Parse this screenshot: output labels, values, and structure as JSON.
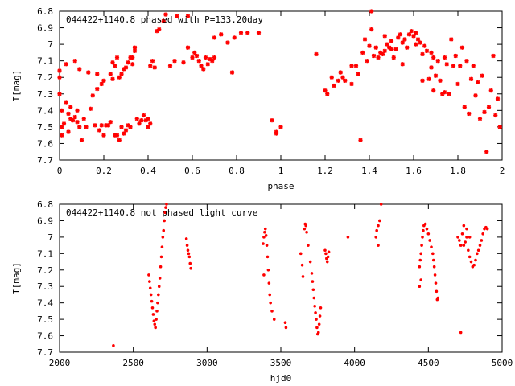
{
  "chart_data": [
    {
      "type": "scatter",
      "title": "044422+1140.8 phased with P=133.20day",
      "xlabel": "phase",
      "ylabel": "I[mag]",
      "xlim": [
        0,
        2
      ],
      "ylim": [
        6.8,
        7.7
      ],
      "y_inverted": true,
      "xticks": [
        0,
        0.2,
        0.4,
        0.6,
        0.8,
        1,
        1.2,
        1.4,
        1.6,
        1.8,
        2
      ],
      "xtick_labels": [
        "0",
        "0.2",
        "0.4",
        "0.6",
        "0.8",
        "1",
        "1.2",
        "1.4",
        "1.6",
        "1.8",
        "2"
      ],
      "yticks": [
        6.8,
        6.9,
        7.0,
        7.1,
        7.2,
        7.3,
        7.4,
        7.5,
        7.6,
        7.7
      ],
      "ytick_labels": [
        "6.8",
        "6.9",
        "7",
        "7.1",
        "7.2",
        "7.3",
        "7.4",
        "7.5",
        "7.6",
        "7.7"
      ],
      "marker_color": "#ff0000",
      "marker": "asterisk",
      "points": [
        [
          0.0,
          7.16
        ],
        [
          0.0,
          7.2
        ],
        [
          0.0,
          7.3
        ],
        [
          0.01,
          7.4
        ],
        [
          0.01,
          7.5
        ],
        [
          0.01,
          7.55
        ],
        [
          0.02,
          7.48
        ],
        [
          0.03,
          7.35
        ],
        [
          0.03,
          7.12
        ],
        [
          0.04,
          7.42
        ],
        [
          0.04,
          7.53
        ],
        [
          0.05,
          7.38
        ],
        [
          0.05,
          7.45
        ],
        [
          0.06,
          7.46
        ],
        [
          0.07,
          7.1
        ],
        [
          0.07,
          7.44
        ],
        [
          0.08,
          7.4
        ],
        [
          0.08,
          7.47
        ],
        [
          0.09,
          7.5
        ],
        [
          0.09,
          7.15
        ],
        [
          0.1,
          7.58
        ],
        [
          0.11,
          7.45
        ],
        [
          0.12,
          7.5
        ],
        [
          0.13,
          7.17
        ],
        [
          0.14,
          7.39
        ],
        [
          0.15,
          7.31
        ],
        [
          0.16,
          7.49
        ],
        [
          0.17,
          7.27
        ],
        [
          0.17,
          7.18
        ],
        [
          0.18,
          7.52
        ],
        [
          0.19,
          7.49
        ],
        [
          0.19,
          7.24
        ],
        [
          0.2,
          7.55
        ],
        [
          0.2,
          7.22
        ],
        [
          0.21,
          7.49
        ],
        [
          0.22,
          7.49
        ],
        [
          0.23,
          7.18
        ],
        [
          0.23,
          7.47
        ],
        [
          0.24,
          7.21
        ],
        [
          0.24,
          7.11
        ],
        [
          0.25,
          7.55
        ],
        [
          0.25,
          7.13
        ],
        [
          0.26,
          7.55
        ],
        [
          0.26,
          7.08
        ],
        [
          0.27,
          7.58
        ],
        [
          0.27,
          7.2
        ],
        [
          0.28,
          7.5
        ],
        [
          0.28,
          7.18
        ],
        [
          0.29,
          7.54
        ],
        [
          0.29,
          7.15
        ],
        [
          0.3,
          7.52
        ],
        [
          0.3,
          7.14
        ],
        [
          0.31,
          7.49
        ],
        [
          0.31,
          7.11
        ],
        [
          0.32,
          7.5
        ],
        [
          0.32,
          7.08
        ],
        [
          0.33,
          7.08
        ],
        [
          0.33,
          7.12
        ],
        [
          0.34,
          7.04
        ],
        [
          0.34,
          7.02
        ],
        [
          0.35,
          7.45
        ],
        [
          0.36,
          7.48
        ],
        [
          0.37,
          7.46
        ],
        [
          0.38,
          7.43
        ],
        [
          0.39,
          7.46
        ],
        [
          0.4,
          7.45
        ],
        [
          0.4,
          7.5
        ],
        [
          0.41,
          7.48
        ],
        [
          0.41,
          7.13
        ],
        [
          0.42,
          7.1
        ],
        [
          0.43,
          7.14
        ],
        [
          0.44,
          6.92
        ],
        [
          0.45,
          6.91
        ],
        [
          0.47,
          6.86
        ],
        [
          0.48,
          6.82
        ],
        [
          0.5,
          7.13
        ],
        [
          0.52,
          7.1
        ],
        [
          0.53,
          6.83
        ],
        [
          0.56,
          7.11
        ],
        [
          0.58,
          7.02
        ],
        [
          0.58,
          6.83
        ],
        [
          0.6,
          7.08
        ],
        [
          0.61,
          7.05
        ],
        [
          0.62,
          7.07
        ],
        [
          0.63,
          7.1
        ],
        [
          0.64,
          7.13
        ],
        [
          0.65,
          7.15
        ],
        [
          0.66,
          7.08
        ],
        [
          0.67,
          7.12
        ],
        [
          0.68,
          7.09
        ],
        [
          0.69,
          7.1
        ],
        [
          0.7,
          7.08
        ],
        [
          0.7,
          6.96
        ],
        [
          0.73,
          6.94
        ],
        [
          0.76,
          6.99
        ],
        [
          0.78,
          7.17
        ],
        [
          0.79,
          6.96
        ],
        [
          0.82,
          6.93
        ],
        [
          0.85,
          6.93
        ],
        [
          0.9,
          6.93
        ],
        [
          0.96,
          7.46
        ],
        [
          0.98,
          7.53
        ],
        [
          0.98,
          7.54
        ],
        [
          1.0,
          7.5
        ],
        [
          1.16,
          7.06
        ],
        [
          1.2,
          7.28
        ],
        [
          1.21,
          7.3
        ],
        [
          1.23,
          7.2
        ],
        [
          1.24,
          7.25
        ],
        [
          1.26,
          7.22
        ],
        [
          1.27,
          7.17
        ],
        [
          1.28,
          7.2
        ],
        [
          1.29,
          7.22
        ],
        [
          1.32,
          7.13
        ],
        [
          1.32,
          7.24
        ],
        [
          1.34,
          7.13
        ],
        [
          1.35,
          7.18
        ],
        [
          1.36,
          7.58
        ],
        [
          1.37,
          7.05
        ],
        [
          1.38,
          6.97
        ],
        [
          1.39,
          7.1
        ],
        [
          1.4,
          7.01
        ],
        [
          1.41,
          6.8
        ],
        [
          1.41,
          6.91
        ],
        [
          1.42,
          7.07
        ],
        [
          1.43,
          7.02
        ],
        [
          1.44,
          7.08
        ],
        [
          1.45,
          7.05
        ],
        [
          1.46,
          7.06
        ],
        [
          1.47,
          7.04
        ],
        [
          1.47,
          6.95
        ],
        [
          1.48,
          7.0
        ],
        [
          1.49,
          7.02
        ],
        [
          1.5,
          6.98
        ],
        [
          1.5,
          7.03
        ],
        [
          1.51,
          7.08
        ],
        [
          1.52,
          7.03
        ],
        [
          1.53,
          6.96
        ],
        [
          1.54,
          6.94
        ],
        [
          1.55,
          6.99
        ],
        [
          1.55,
          7.12
        ],
        [
          1.56,
          6.97
        ],
        [
          1.57,
          7.02
        ],
        [
          1.58,
          6.94
        ],
        [
          1.59,
          6.92
        ],
        [
          1.6,
          6.95
        ],
        [
          1.61,
          6.93
        ],
        [
          1.61,
          7.0
        ],
        [
          1.62,
          6.97
        ],
        [
          1.63,
          6.99
        ],
        [
          1.64,
          7.06
        ],
        [
          1.64,
          7.22
        ],
        [
          1.65,
          7.01
        ],
        [
          1.66,
          7.04
        ],
        [
          1.67,
          7.21
        ],
        [
          1.68,
          7.14
        ],
        [
          1.68,
          7.05
        ],
        [
          1.69,
          7.28
        ],
        [
          1.69,
          7.08
        ],
        [
          1.7,
          7.19
        ],
        [
          1.71,
          7.1
        ],
        [
          1.72,
          7.22
        ],
        [
          1.73,
          7.3
        ],
        [
          1.74,
          7.08
        ],
        [
          1.74,
          7.29
        ],
        [
          1.75,
          7.12
        ],
        [
          1.76,
          7.3
        ],
        [
          1.77,
          6.97
        ],
        [
          1.78,
          7.13
        ],
        [
          1.79,
          7.07
        ],
        [
          1.8,
          7.24
        ],
        [
          1.81,
          7.13
        ],
        [
          1.82,
          7.02
        ],
        [
          1.83,
          7.38
        ],
        [
          1.84,
          7.1
        ],
        [
          1.85,
          7.42
        ],
        [
          1.86,
          7.21
        ],
        [
          1.87,
          7.13
        ],
        [
          1.88,
          7.31
        ],
        [
          1.89,
          7.23
        ],
        [
          1.9,
          7.45
        ],
        [
          1.91,
          7.19
        ],
        [
          1.92,
          7.41
        ],
        [
          1.93,
          7.65
        ],
        [
          1.94,
          7.38
        ],
        [
          1.95,
          7.28
        ],
        [
          1.96,
          7.07
        ],
        [
          1.97,
          7.43
        ],
        [
          1.98,
          7.33
        ],
        [
          1.99,
          7.5
        ]
      ]
    },
    {
      "type": "scatter",
      "title": "044422+1140.8 not phased light curve",
      "xlabel": "hjd0",
      "ylabel": "I[mag]",
      "xlim": [
        2000,
        5000
      ],
      "ylim": [
        6.8,
        7.7
      ],
      "y_inverted": true,
      "xticks": [
        2000,
        2500,
        3000,
        3500,
        4000,
        4500,
        5000
      ],
      "xtick_labels": [
        "2000",
        "2500",
        "3000",
        "3500",
        "4000",
        "4500",
        "5000"
      ],
      "yticks": [
        6.8,
        6.9,
        7.0,
        7.1,
        7.2,
        7.3,
        7.4,
        7.5,
        7.6,
        7.7
      ],
      "ytick_labels": [
        "6.8",
        "6.9",
        "7",
        "7.1",
        "7.2",
        "7.3",
        "7.4",
        "7.5",
        "7.6",
        "7.7"
      ],
      "marker_color": "#ff0000",
      "marker": "dot",
      "points": [
        [
          2365,
          7.66
        ],
        [
          2605,
          7.23
        ],
        [
          2610,
          7.27
        ],
        [
          2615,
          7.31
        ],
        [
          2620,
          7.35
        ],
        [
          2625,
          7.39
        ],
        [
          2630,
          7.43
        ],
        [
          2635,
          7.47
        ],
        [
          2640,
          7.51
        ],
        [
          2645,
          7.53
        ],
        [
          2650,
          7.55
        ],
        [
          2655,
          7.5
        ],
        [
          2660,
          7.45
        ],
        [
          2665,
          7.4
        ],
        [
          2670,
          7.35
        ],
        [
          2675,
          7.3
        ],
        [
          2680,
          7.25
        ],
        [
          2685,
          7.18
        ],
        [
          2690,
          7.12
        ],
        [
          2695,
          7.06
        ],
        [
          2700,
          7.0
        ],
        [
          2705,
          6.96
        ],
        [
          2710,
          6.9
        ],
        [
          2715,
          6.85
        ],
        [
          2720,
          6.82
        ],
        [
          2725,
          6.8
        ],
        [
          2860,
          7.01
        ],
        [
          2865,
          7.05
        ],
        [
          2870,
          7.08
        ],
        [
          2875,
          7.1
        ],
        [
          2880,
          7.12
        ],
        [
          2885,
          7.16
        ],
        [
          2890,
          7.19
        ],
        [
          3380,
          7.04
        ],
        [
          3385,
          7.0
        ],
        [
          3390,
          6.97
        ],
        [
          3395,
          6.95
        ],
        [
          3400,
          6.99
        ],
        [
          3405,
          7.05
        ],
        [
          3410,
          7.12
        ],
        [
          3415,
          7.2
        ],
        [
          3420,
          7.28
        ],
        [
          3425,
          7.35
        ],
        [
          3430,
          7.4
        ],
        [
          3440,
          7.45
        ],
        [
          3455,
          7.5
        ],
        [
          3385,
          7.23
        ],
        [
          3530,
          7.52
        ],
        [
          3535,
          7.55
        ],
        [
          3635,
          7.1
        ],
        [
          3645,
          7.17
        ],
        [
          3650,
          7.24
        ],
        [
          3660,
          6.95
        ],
        [
          3665,
          6.92
        ],
        [
          3670,
          6.93
        ],
        [
          3675,
          6.97
        ],
        [
          3685,
          7.05
        ],
        [
          3700,
          7.15
        ],
        [
          3710,
          7.22
        ],
        [
          3715,
          7.27
        ],
        [
          3720,
          7.32
        ],
        [
          3725,
          7.37
        ],
        [
          3730,
          7.42
        ],
        [
          3735,
          7.46
        ],
        [
          3740,
          7.5
        ],
        [
          3745,
          7.55
        ],
        [
          3750,
          7.59
        ],
        [
          3755,
          7.58
        ],
        [
          3760,
          7.53
        ],
        [
          3765,
          7.48
        ],
        [
          3770,
          7.43
        ],
        [
          3800,
          7.08
        ],
        [
          3805,
          7.1
        ],
        [
          3810,
          7.13
        ],
        [
          3815,
          7.15
        ],
        [
          3820,
          7.12
        ],
        [
          3825,
          7.09
        ],
        [
          3955,
          7.0
        ],
        [
          4145,
          7.0
        ],
        [
          4150,
          6.96
        ],
        [
          4160,
          6.93
        ],
        [
          4170,
          6.9
        ],
        [
          4180,
          6.8
        ],
        [
          4160,
          7.05
        ],
        [
          4440,
          7.18
        ],
        [
          4445,
          7.14
        ],
        [
          4450,
          7.1
        ],
        [
          4455,
          7.05
        ],
        [
          4460,
          7.0
        ],
        [
          4465,
          6.96
        ],
        [
          4470,
          6.93
        ],
        [
          4480,
          6.92
        ],
        [
          4490,
          6.95
        ],
        [
          4500,
          6.98
        ],
        [
          4510,
          7.02
        ],
        [
          4520,
          7.06
        ],
        [
          4530,
          7.1
        ],
        [
          4535,
          7.14
        ],
        [
          4540,
          7.18
        ],
        [
          4545,
          7.23
        ],
        [
          4550,
          7.28
        ],
        [
          4555,
          7.33
        ],
        [
          4560,
          7.38
        ],
        [
          4565,
          7.37
        ],
        [
          4440,
          7.3
        ],
        [
          4450,
          7.26
        ],
        [
          4700,
          7.0
        ],
        [
          4710,
          7.02
        ],
        [
          4720,
          7.05
        ],
        [
          4730,
          6.98
        ],
        [
          4740,
          7.05
        ],
        [
          4750,
          7.03
        ],
        [
          4760,
          7.0
        ],
        [
          4770,
          7.08
        ],
        [
          4780,
          7.12
        ],
        [
          4790,
          7.15
        ],
        [
          4800,
          7.18
        ],
        [
          4810,
          7.17
        ],
        [
          4820,
          7.14
        ],
        [
          4830,
          7.1
        ],
        [
          4840,
          7.08
        ],
        [
          4850,
          7.05
        ],
        [
          4860,
          7.02
        ],
        [
          4870,
          6.98
        ],
        [
          4880,
          6.95
        ],
        [
          4890,
          6.94
        ],
        [
          4900,
          6.95
        ],
        [
          4740,
          6.93
        ],
        [
          4760,
          6.95
        ],
        [
          4780,
          7.0
        ],
        [
          4720,
          7.58
        ]
      ]
    }
  ]
}
